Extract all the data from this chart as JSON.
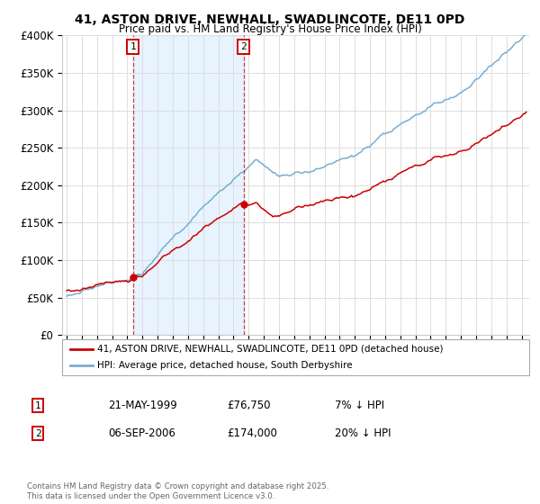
{
  "title": "41, ASTON DRIVE, NEWHALL, SWADLINCOTE, DE11 0PD",
  "subtitle": "Price paid vs. HM Land Registry's House Price Index (HPI)",
  "ylim": [
    0,
    400000
  ],
  "yticks": [
    0,
    50000,
    100000,
    150000,
    200000,
    250000,
    300000,
    350000,
    400000
  ],
  "ytick_labels": [
    "£0",
    "£50K",
    "£100K",
    "£150K",
    "£200K",
    "£250K",
    "£300K",
    "£350K",
    "£400K"
  ],
  "xlim_start": 1994.7,
  "xlim_end": 2025.5,
  "marker1_x": 1999.38,
  "marker1_y": 76750,
  "marker2_x": 2006.68,
  "marker2_y": 174000,
  "marker1_date": "21-MAY-1999",
  "marker1_price": "£76,750",
  "marker1_hpi": "7% ↓ HPI",
  "marker2_date": "06-SEP-2006",
  "marker2_price": "£174,000",
  "marker2_hpi": "20% ↓ HPI",
  "legend_line1": "41, ASTON DRIVE, NEWHALL, SWADLINCOTE, DE11 0PD (detached house)",
  "legend_line2": "HPI: Average price, detached house, South Derbyshire",
  "footnote": "Contains HM Land Registry data © Crown copyright and database right 2025.\nThis data is licensed under the Open Government Licence v3.0.",
  "red_color": "#cc0000",
  "blue_color": "#7aadcf",
  "shade_color": "#ddeeff",
  "bg_color": "#ffffff",
  "grid_color": "#dddddd"
}
